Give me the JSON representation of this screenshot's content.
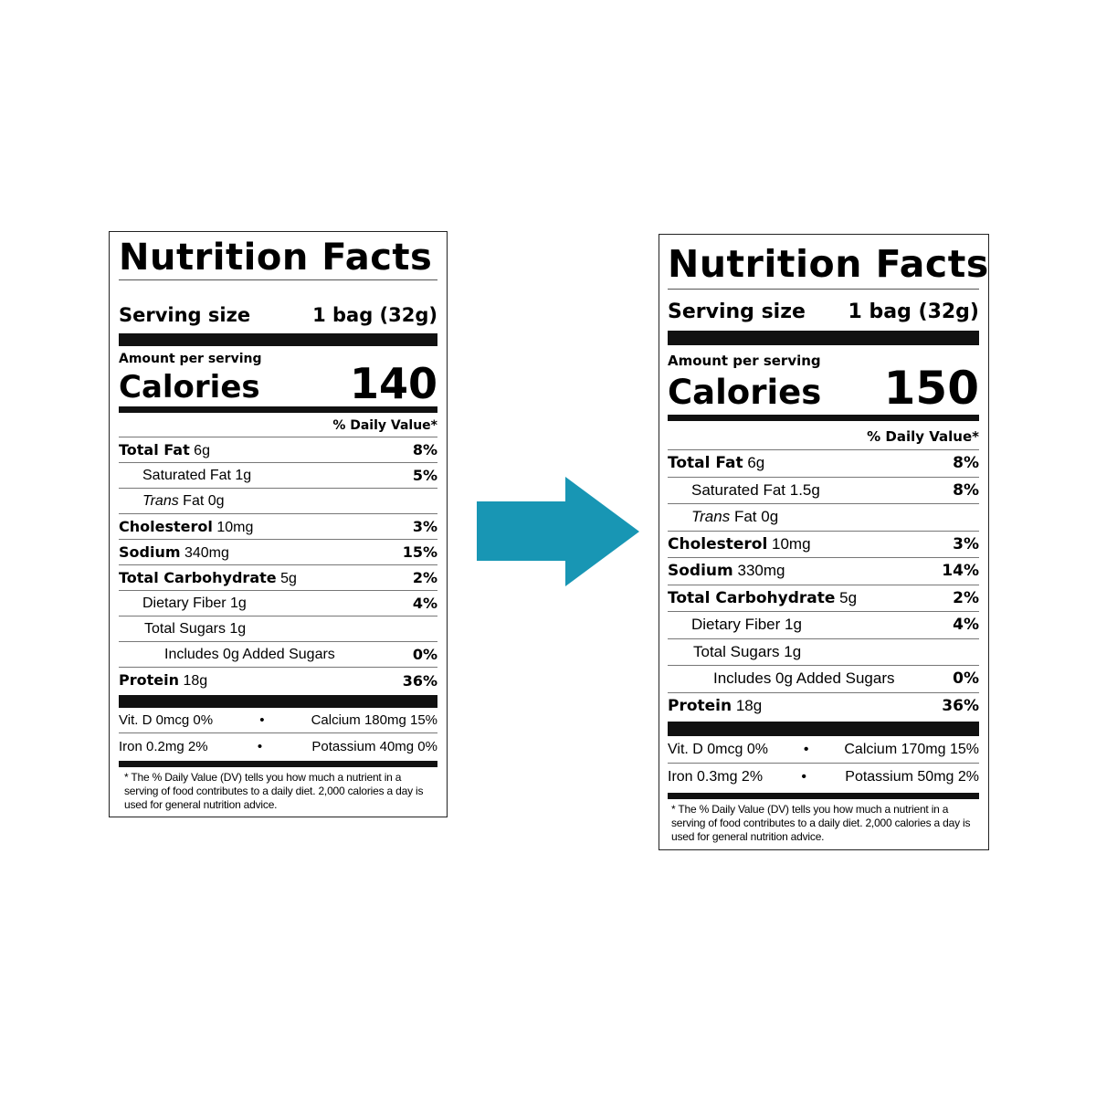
{
  "colors": {
    "arrow": "#1896b4"
  },
  "arrow_icon": "right-arrow-icon",
  "labels": {
    "before": {
      "title": "Nutrition Facts",
      "serving_label": "Serving size",
      "serving_value": "1 bag (32g)",
      "amount_label": "Amount per serving",
      "calories_label": "Calories",
      "calories_value": "140",
      "dv_header": "% Daily Value*",
      "nutrients": [
        {
          "name": "Total Fat",
          "amount": "6g",
          "dv": "8%"
        },
        {
          "name": "Saturated Fat",
          "amount": "1g",
          "dv": "5%"
        },
        {
          "name": "Trans",
          "name_rest": "Fat",
          "amount": "0g",
          "dv": ""
        },
        {
          "name": "Cholesterol",
          "amount": "10mg",
          "dv": "3%"
        },
        {
          "name": "Sodium",
          "amount": "340mg",
          "dv": "15%"
        },
        {
          "name": "Total Carbohydrate",
          "amount": "5g",
          "dv": "2%"
        },
        {
          "name": "Dietary Fiber",
          "amount": "1g",
          "dv": "4%"
        },
        {
          "name": "Total Sugars",
          "amount": "1g",
          "dv": ""
        },
        {
          "name": "Includes 0g Added Sugars",
          "amount": "",
          "dv": "0%"
        },
        {
          "name": "Protein",
          "amount": "18g",
          "dv": "36%"
        }
      ],
      "minerals": [
        {
          "left": "Vit. D 0mcg 0%",
          "sep": "•",
          "right": "Calcium 180mg 15%"
        },
        {
          "left": "Iron 0.2mg 2%",
          "sep": "•",
          "right": "Potassium 40mg 0%"
        }
      ],
      "footnote": "* The % Daily Value (DV) tells you how much a nutrient in a serving of food contributes to a daily diet. 2,000 calories a day is used for general nutrition advice."
    },
    "after": {
      "title": "Nutrition Facts",
      "serving_label": "Serving size",
      "serving_value": "1 bag (32g)",
      "amount_label": "Amount per serving",
      "calories_label": "Calories",
      "calories_value": "150",
      "dv_header": "% Daily Value*",
      "nutrients": [
        {
          "name": "Total Fat",
          "amount": "6g",
          "dv": "8%"
        },
        {
          "name": "Saturated Fat",
          "amount": "1.5g",
          "dv": "8%"
        },
        {
          "name": "Trans",
          "name_rest": "Fat",
          "amount": "0g",
          "dv": ""
        },
        {
          "name": "Cholesterol",
          "amount": "10mg",
          "dv": "3%"
        },
        {
          "name": "Sodium",
          "amount": "330mg",
          "dv": "14%"
        },
        {
          "name": "Total Carbohydrate",
          "amount": "5g",
          "dv": "2%"
        },
        {
          "name": "Dietary Fiber",
          "amount": "1g",
          "dv": "4%"
        },
        {
          "name": "Total Sugars",
          "amount": "1g",
          "dv": ""
        },
        {
          "name": "Includes 0g Added Sugars",
          "amount": "",
          "dv": "0%"
        },
        {
          "name": "Protein",
          "amount": "18g",
          "dv": "36%"
        }
      ],
      "minerals": [
        {
          "left": "Vit. D 0mcg 0%",
          "sep": "•",
          "right": "Calcium 170mg 15%"
        },
        {
          "left": "Iron 0.3mg 2%",
          "sep": "•",
          "right": "Potassium 50mg 2%"
        }
      ],
      "footnote": "* The % Daily Value (DV) tells you how much a nutrient in a serving of food contributes to a daily diet. 2,000 calories a day is used for general nutrition advice."
    }
  }
}
